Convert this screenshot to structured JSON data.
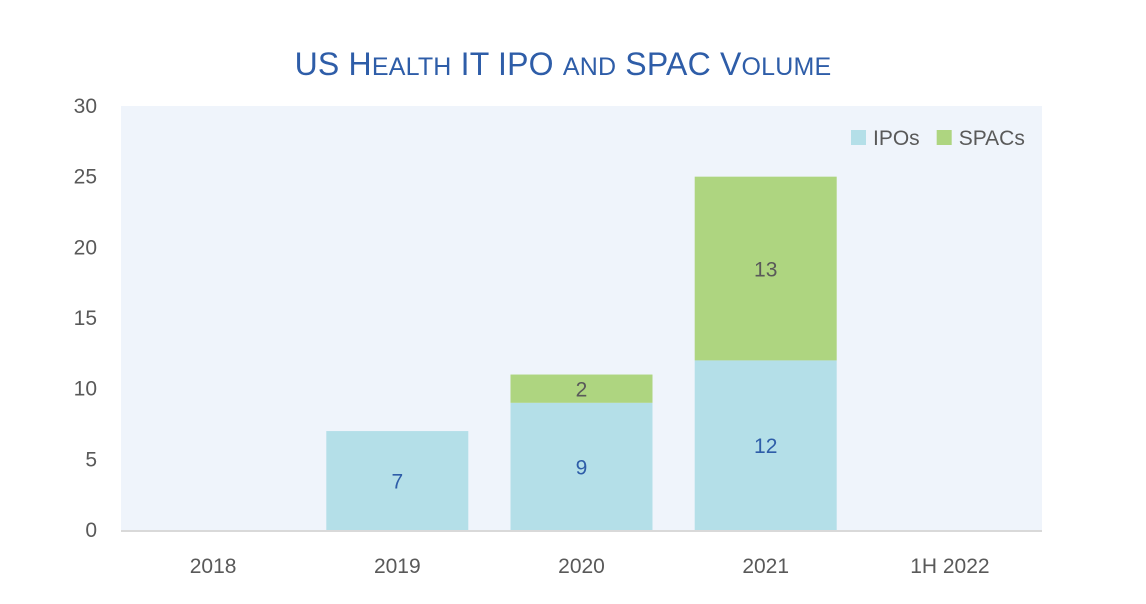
{
  "chart_data": {
    "type": "bar",
    "stacked": true,
    "title": "US Health IT IPO and SPAC Volume",
    "title_parts": [
      {
        "text": "US H",
        "small_caps": false
      },
      {
        "text": "EALTH",
        "small_caps": true
      },
      {
        "text": " IT IPO ",
        "small_caps": false
      },
      {
        "text": "AND",
        "small_caps": true
      },
      {
        "text": " SPAC V",
        "small_caps": false
      },
      {
        "text": "OLUME",
        "small_caps": true
      }
    ],
    "xlabel": "",
    "ylabel": "",
    "categories": [
      "2018",
      "2019",
      "2020",
      "2021",
      "1H 2022"
    ],
    "series": [
      {
        "name": "IPOs",
        "values": [
          0,
          7,
          9,
          12,
          0
        ],
        "color": "#B4DFE8",
        "label_color": "#2E5DA8"
      },
      {
        "name": "SPACs",
        "values": [
          0,
          0,
          2,
          13,
          0
        ],
        "color": "#AED580",
        "label_color": "#595959"
      }
    ],
    "ylim": [
      0,
      30
    ],
    "yticks": [
      0,
      5,
      10,
      15,
      20,
      25,
      30
    ],
    "grid": false,
    "legend_position": "top-right",
    "plot_background": "#EFF4FB",
    "axis_line_color": "#D9D9D9"
  }
}
